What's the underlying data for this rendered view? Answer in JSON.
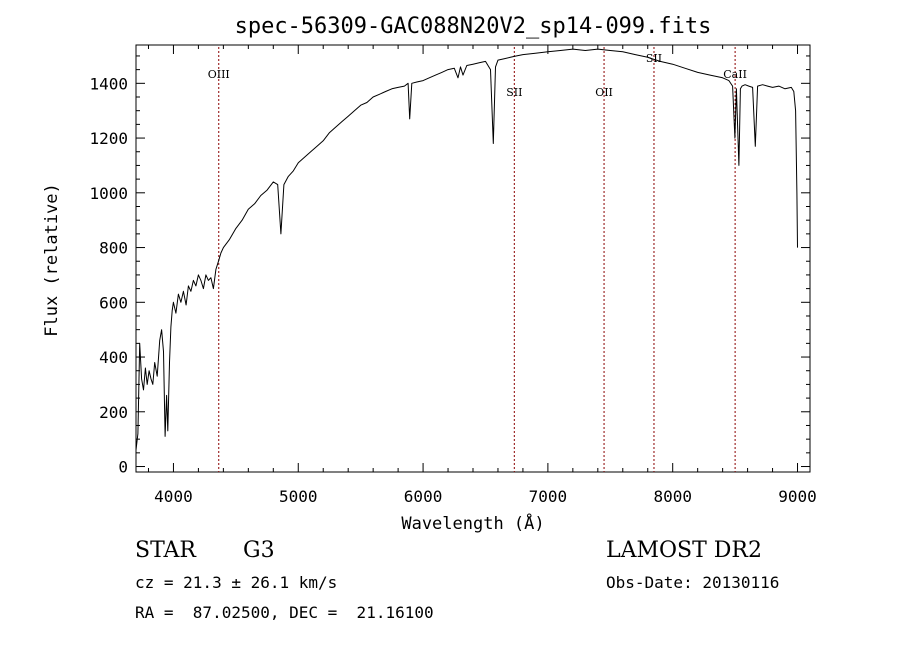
{
  "chart_data": {
    "type": "line",
    "title": "spec-56309-GAC088N20V2_sp14-099.fits",
    "xlabel": "Wavelength (Å)",
    "ylabel": "Flux (relative)",
    "xlim": [
      3700,
      9100
    ],
    "ylim": [
      -20,
      1540
    ],
    "x_ticks": [
      4000,
      5000,
      6000,
      7000,
      8000,
      9000
    ],
    "y_ticks": [
      0,
      200,
      400,
      600,
      800,
      1000,
      1200,
      1400
    ],
    "grid": false,
    "series": [
      {
        "name": "spectrum",
        "x": [
          3700,
          3715,
          3730,
          3745,
          3760,
          3775,
          3790,
          3805,
          3820,
          3835,
          3850,
          3870,
          3890,
          3905,
          3920,
          3933,
          3945,
          3955,
          3968,
          3980,
          3990,
          4000,
          4020,
          4040,
          4060,
          4080,
          4101,
          4120,
          4140,
          4160,
          4180,
          4200,
          4220,
          4240,
          4260,
          4280,
          4300,
          4320,
          4340,
          4361,
          4380,
          4400,
          4450,
          4500,
          4550,
          4600,
          4650,
          4700,
          4750,
          4800,
          4835,
          4861,
          4885,
          4920,
          4960,
          5000,
          5050,
          5100,
          5150,
          5200,
          5250,
          5300,
          5350,
          5400,
          5450,
          5500,
          5550,
          5600,
          5650,
          5700,
          5750,
          5800,
          5850,
          5880,
          5893,
          5910,
          5950,
          6000,
          6050,
          6100,
          6150,
          6200,
          6250,
          6280,
          6300,
          6320,
          6350,
          6400,
          6450,
          6500,
          6540,
          6563,
          6580,
          6600,
          6650,
          6700,
          6750,
          6800,
          6900,
          7000,
          7100,
          7200,
          7300,
          7400,
          7500,
          7600,
          7700,
          7800,
          7900,
          8000,
          8100,
          8200,
          8300,
          8400,
          8450,
          8480,
          8498,
          8510,
          8530,
          8542,
          8555,
          8580,
          8610,
          8640,
          8662,
          8680,
          8720,
          8760,
          8800,
          8850,
          8900,
          8950,
          8970,
          8985,
          8995,
          9000
        ],
        "values": [
          60,
          120,
          450,
          320,
          280,
          360,
          300,
          350,
          320,
          300,
          380,
          330,
          460,
          500,
          420,
          110,
          260,
          130,
          380,
          510,
          570,
          600,
          560,
          630,
          600,
          640,
          590,
          660,
          640,
          680,
          660,
          700,
          680,
          650,
          700,
          680,
          690,
          650,
          720,
          750,
          780,
          800,
          830,
          870,
          900,
          940,
          960,
          990,
          1010,
          1040,
          1030,
          850,
          1030,
          1060,
          1080,
          1110,
          1130,
          1150,
          1170,
          1190,
          1220,
          1240,
          1260,
          1280,
          1300,
          1320,
          1330,
          1350,
          1360,
          1370,
          1380,
          1385,
          1390,
          1400,
          1270,
          1400,
          1405,
          1410,
          1420,
          1430,
          1440,
          1450,
          1455,
          1420,
          1460,
          1430,
          1465,
          1470,
          1475,
          1480,
          1450,
          1180,
          1460,
          1485,
          1490,
          1495,
          1500,
          1505,
          1510,
          1515,
          1520,
          1525,
          1520,
          1525,
          1520,
          1515,
          1505,
          1495,
          1480,
          1470,
          1455,
          1440,
          1430,
          1420,
          1410,
          1390,
          1200,
          1380,
          1100,
          1380,
          1390,
          1395,
          1390,
          1385,
          1170,
          1390,
          1395,
          1390,
          1385,
          1390,
          1380,
          1385,
          1370,
          1300,
          1000,
          800
        ]
      }
    ],
    "annotations": [
      {
        "label": "OIII",
        "x": 4363
      },
      {
        "label": "SII",
        "x": 6731
      },
      {
        "label": "OII",
        "x": 7450
      },
      {
        "label": "SII",
        "x": 7850
      },
      {
        "label": "CaII",
        "x": 8500
      }
    ],
    "line_color": "#000000",
    "marker_color": "#8b0000"
  },
  "info": {
    "object_class": "STAR",
    "subclass": "G3",
    "survey": "LAMOST DR2",
    "cz": "cz = 21.3 ± 26.1 km/s",
    "obs_date": "Obs-Date: 20130116",
    "coords": "RA =  87.02500, DEC =  21.16100"
  }
}
